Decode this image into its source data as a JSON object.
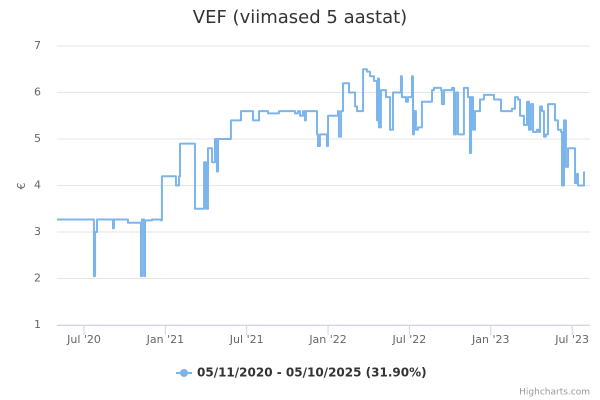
{
  "chart_data": {
    "type": "line",
    "step": true,
    "title": "VEF (viimased 5 aastat)",
    "y_label": "€",
    "credits": "Highcharts.com",
    "grid": true,
    "legend": "bottom",
    "xlim": [
      2020.334,
      2023.61
    ],
    "xticks": [
      {
        "value": 2020.5,
        "label": "Jul '20"
      },
      {
        "value": 2021.0,
        "label": "Jan '21"
      },
      {
        "value": 2021.5,
        "label": "Jul '21"
      },
      {
        "value": 2022.0,
        "label": "Jan '22"
      },
      {
        "value": 2022.5,
        "label": "Jul '22"
      },
      {
        "value": 2023.0,
        "label": "Jan '23"
      },
      {
        "value": 2023.5,
        "label": "Jul '23"
      }
    ],
    "ylim": [
      1,
      7
    ],
    "yticks": [
      1,
      2,
      3,
      4,
      5,
      6,
      7
    ],
    "series": [
      {
        "name": "05/11/2020 - 05/10/2025 (31.90%)",
        "color": "#7cb5ec",
        "x": [
          2020.334,
          2020.555,
          2020.561,
          2020.568,
          2020.58,
          2020.672,
          2020.678,
          2020.684,
          2020.77,
          2020.844,
          2020.85,
          2020.856,
          2020.869,
          2020.875,
          2020.918,
          2020.973,
          2020.979,
          2021.059,
          2021.065,
          2021.084,
          2021.09,
          2021.176,
          2021.182,
          2021.231,
          2021.238,
          2021.25,
          2021.262,
          2021.287,
          2021.305,
          2021.317,
          2021.324,
          2021.397,
          2021.403,
          2021.459,
          2021.465,
          2021.533,
          2021.539,
          2021.576,
          2021.631,
          2021.698,
          2021.797,
          2021.815,
          2021.828,
          2021.846,
          2021.858,
          2021.864,
          2021.926,
          2021.932,
          2021.938,
          2021.95,
          2021.987,
          2021.993,
          2022.0,
          2022.055,
          2022.061,
          2022.067,
          2022.08,
          2022.092,
          2022.123,
          2022.129,
          2022.159,
          2022.166,
          2022.178,
          2022.209,
          2022.215,
          2022.239,
          2022.258,
          2022.282,
          2022.301,
          2022.307,
          2022.313,
          2022.325,
          2022.356,
          2022.375,
          2022.381,
          2022.399,
          2022.442,
          2022.448,
          2022.454,
          2022.479,
          2022.491,
          2022.516,
          2022.522,
          2022.528,
          2022.54,
          2022.553,
          2022.577,
          2022.627,
          2022.639,
          2022.651,
          2022.694,
          2022.7,
          2022.713,
          2022.762,
          2022.774,
          2022.786,
          2022.799,
          2022.835,
          2022.86,
          2022.872,
          2022.879,
          2022.891,
          2022.903,
          2022.934,
          2022.958,
          2022.995,
          2023.02,
          2023.063,
          2023.081,
          2023.13,
          2023.149,
          2023.167,
          2023.18,
          2023.198,
          2023.204,
          2023.223,
          2023.235,
          2023.247,
          2023.26,
          2023.284,
          2023.296,
          2023.303,
          2023.315,
          2023.327,
          2023.339,
          2023.352,
          2023.395,
          2023.413,
          2023.432,
          2023.438,
          2023.45,
          2023.462,
          2023.475,
          2023.512,
          2023.518,
          2023.53,
          2023.536,
          2023.567,
          2023.573
        ],
        "values": [
          3.27,
          3.27,
          2.05,
          3.0,
          3.27,
          3.27,
          3.08,
          3.27,
          3.2,
          3.2,
          2.05,
          3.27,
          2.05,
          3.25,
          3.27,
          3.25,
          4.2,
          4.2,
          4.0,
          4.2,
          4.9,
          4.9,
          3.5,
          3.5,
          4.5,
          3.5,
          4.8,
          4.5,
          5.0,
          4.3,
          5.0,
          5.0,
          5.4,
          5.4,
          5.6,
          5.6,
          5.4,
          5.6,
          5.55,
          5.6,
          5.55,
          5.6,
          5.5,
          5.6,
          5.4,
          5.6,
          5.6,
          5.1,
          4.85,
          5.1,
          5.1,
          4.85,
          5.5,
          5.5,
          5.6,
          5.05,
          5.6,
          6.2,
          6.2,
          6.0,
          6.0,
          5.7,
          5.6,
          5.6,
          6.5,
          6.45,
          6.35,
          6.25,
          5.4,
          6.3,
          5.25,
          6.05,
          5.9,
          5.9,
          5.2,
          6.0,
          6.0,
          6.35,
          5.9,
          5.8,
          5.9,
          6.35,
          5.1,
          5.6,
          5.2,
          5.25,
          5.8,
          5.8,
          6.05,
          6.1,
          6.05,
          5.75,
          6.05,
          6.1,
          5.1,
          6.0,
          5.1,
          6.1,
          5.9,
          4.7,
          5.9,
          5.2,
          5.6,
          5.85,
          5.95,
          5.95,
          5.85,
          5.6,
          5.6,
          5.65,
          5.9,
          5.85,
          5.5,
          5.5,
          5.3,
          5.8,
          5.2,
          5.75,
          5.15,
          5.2,
          5.15,
          5.7,
          5.6,
          5.05,
          5.1,
          5.75,
          5.4,
          5.2,
          5.15,
          4.0,
          5.4,
          4.4,
          4.8,
          4.8,
          4.05,
          4.25,
          4.0,
          4.0,
          4.3
        ]
      }
    ]
  }
}
